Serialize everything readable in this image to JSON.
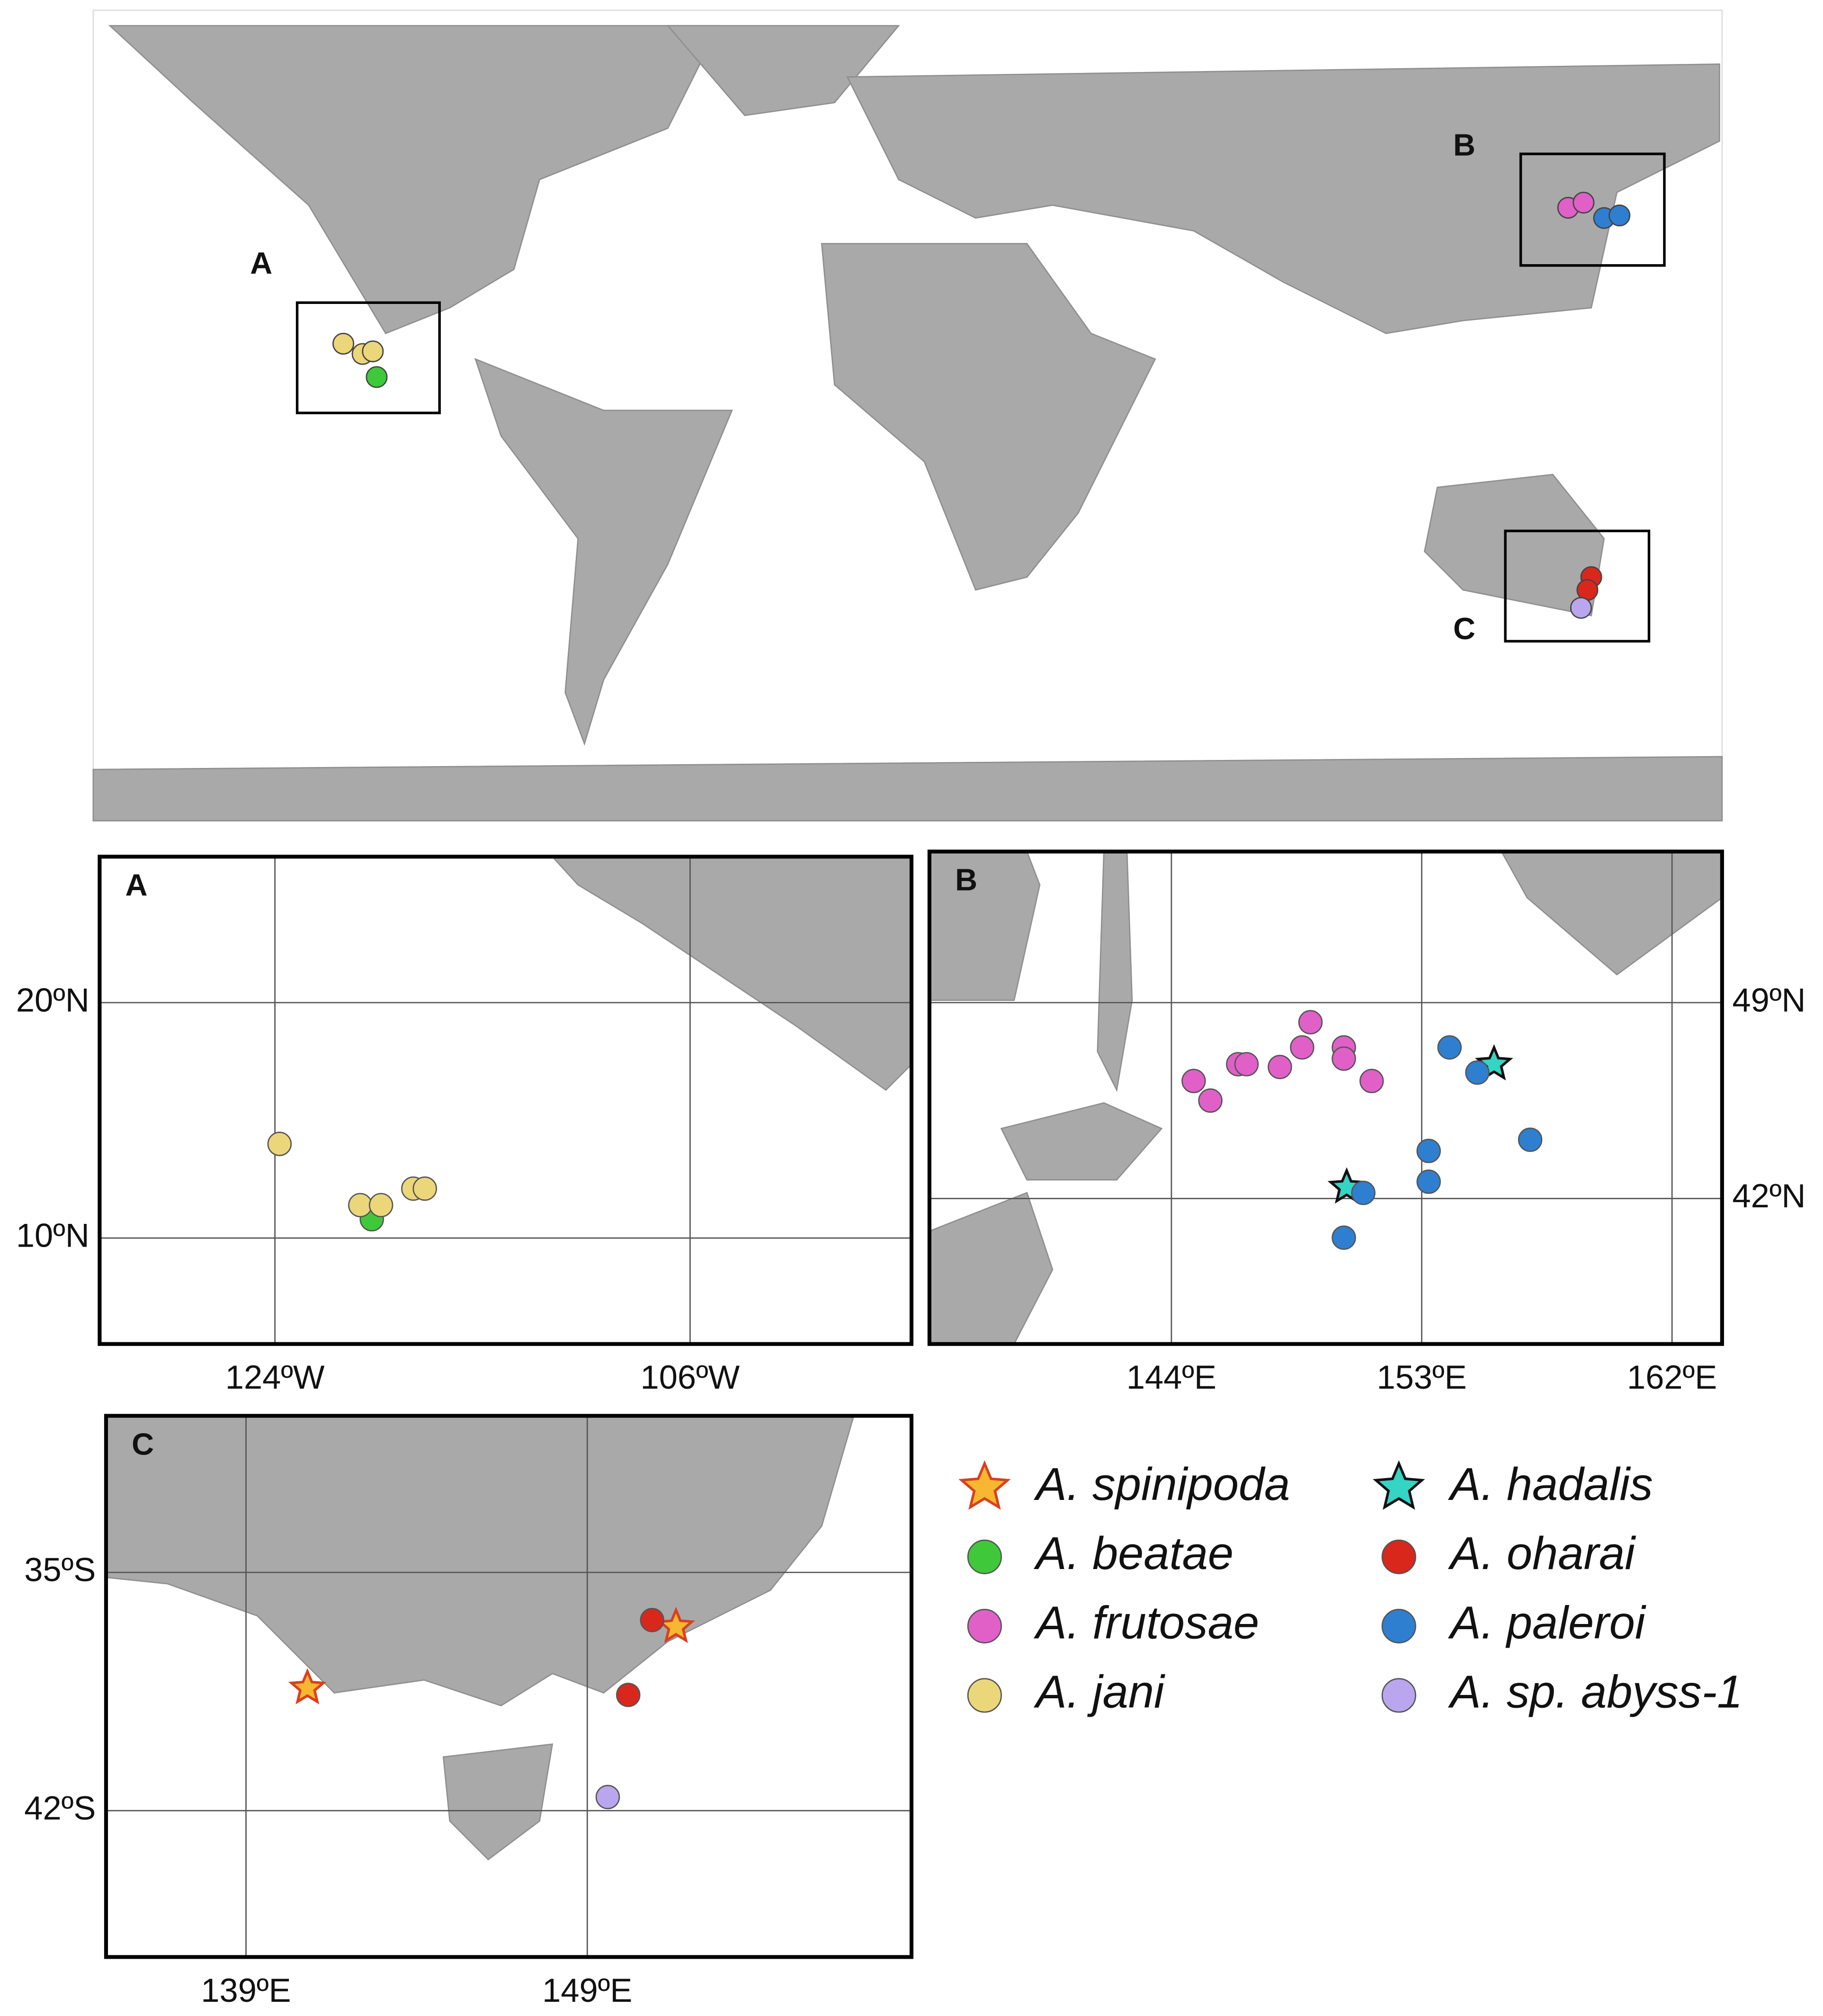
{
  "chart_data": {
    "type": "map",
    "overview_labels": [
      "A",
      "B",
      "C"
    ],
    "panels": [
      {
        "label": "A",
        "xlim": [
          -131.6,
          -96.4
        ],
        "ylim": [
          5.5,
          26.2
        ],
        "xticks": [
          {
            "value": -124,
            "label": "124ºW"
          },
          {
            "value": -106,
            "label": "106ºW"
          }
        ],
        "yticks": [
          {
            "value": 10,
            "label": "10ºN"
          },
          {
            "value": 20,
            "label": "20ºN"
          }
        ]
      },
      {
        "label": "B",
        "xlim": [
          135.3,
          163.8
        ],
        "ylim": [
          36.8,
          54.4
        ],
        "xticks": [
          {
            "value": 144,
            "label": "144ºE"
          },
          {
            "value": 153,
            "label": "153ºE"
          },
          {
            "value": 162,
            "label": "162ºE"
          }
        ],
        "yticks": [
          {
            "value": 42,
            "label": "42ºN"
          },
          {
            "value": 49,
            "label": "49ºN"
          }
        ]
      },
      {
        "label": "C",
        "xlim": [
          134.9,
          158.5
        ],
        "ylim": [
          -46.3,
          -30.4
        ],
        "xticks": [
          {
            "value": 139,
            "label": "139ºE"
          },
          {
            "value": 149,
            "label": "149ºE"
          }
        ],
        "yticks": [
          {
            "value": -42,
            "label": "42ºS"
          },
          {
            "value": -35,
            "label": "35ºS"
          }
        ]
      }
    ],
    "series": [
      {
        "name": "A. spinipoda",
        "color": "#f7b731",
        "marker": "star",
        "panel": "C",
        "x": [
          140.8,
          151.6
        ],
        "y": [
          -38.4,
          -36.6
        ]
      },
      {
        "name": "A. beatae",
        "color": "#3fc93a",
        "marker": "circle",
        "panel": "A",
        "x": [
          -119.8
        ],
        "y": [
          10.8
        ]
      },
      {
        "name": "A. frutosae",
        "color": "#e060c8",
        "marker": "circle",
        "panel": "B",
        "x": [
          144.8,
          145.4,
          146.4,
          146.7,
          147.9,
          148.7,
          149.0,
          150.2,
          150.2,
          151.2
        ],
        "y": [
          46.2,
          45.5,
          46.8,
          46.8,
          46.7,
          47.4,
          48.3,
          47.4,
          47.0,
          46.2
        ]
      },
      {
        "name": "A. jani",
        "color": "#ecd67a",
        "marker": "circle",
        "panel": "A",
        "x": [
          -123.8,
          -120.3,
          -119.4,
          -118.0,
          -117.5
        ],
        "y": [
          14.0,
          11.4,
          11.4,
          12.1,
          12.1
        ]
      },
      {
        "name": "A. hadalis",
        "color": "#35d4c4",
        "marker": "star",
        "panel": "B",
        "x": [
          155.6,
          150.3
        ],
        "y": [
          46.8,
          42.4
        ]
      },
      {
        "name": "A. oharai",
        "color": "#d9271c",
        "marker": "circle",
        "panel": "C",
        "x": [
          150.9,
          150.2
        ],
        "y": [
          -36.4,
          -38.6
        ]
      },
      {
        "name": "A. paleroi",
        "color": "#2e7fd0",
        "marker": "circle",
        "panel": "B",
        "x": [
          154.0,
          155.0,
          156.9,
          153.25,
          153.25,
          150.9,
          150.2
        ],
        "y": [
          47.4,
          46.5,
          44.1,
          43.7,
          42.6,
          42.2,
          40.6
        ]
      },
      {
        "name": "A. sp. abyss-1",
        "color": "#b9a6ee",
        "marker": "circle",
        "panel": "C",
        "x": [
          149.6
        ],
        "y": [
          -41.6
        ]
      }
    ]
  }
}
